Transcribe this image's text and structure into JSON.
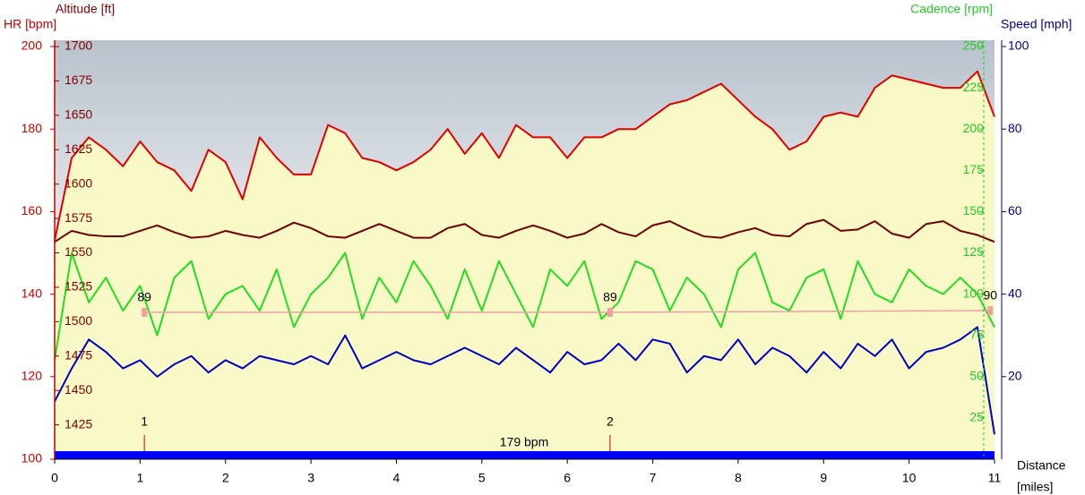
{
  "chart_data": {
    "type": "line",
    "x": [
      0,
      0.2,
      0.4,
      0.6,
      0.8,
      1,
      1.2,
      1.4,
      1.6,
      1.8,
      2,
      2.2,
      2.4,
      2.6,
      2.8,
      3,
      3.2,
      3.4,
      3.6,
      3.8,
      4,
      4.2,
      4.4,
      4.6,
      4.8,
      5,
      5.2,
      5.4,
      5.6,
      5.8,
      6,
      6.2,
      6.4,
      6.6,
      6.8,
      7,
      7.2,
      7.4,
      7.6,
      7.8,
      8,
      8.2,
      8.4,
      8.6,
      8.8,
      9,
      9.2,
      9.4,
      9.6,
      9.8,
      10,
      10.2,
      10.4,
      10.6,
      10.8,
      11
    ],
    "xlim": [
      0,
      11
    ],
    "xticks": [
      0,
      1,
      2,
      3,
      4,
      5,
      6,
      7,
      8,
      9,
      10,
      11
    ],
    "xlabel": [
      "Distance",
      "[miles]"
    ],
    "axes": [
      {
        "title": "HR [bpm]",
        "side": "left-outer",
        "color": "#cc0000",
        "lim": [
          100,
          200
        ],
        "ticks": [
          100,
          120,
          140,
          160,
          180,
          200
        ]
      },
      {
        "title": "Altitude [ft]",
        "side": "left-inner",
        "color": "#800000",
        "lim": [
          1400,
          1700
        ],
        "ticks": [
          1425,
          1450,
          1475,
          1500,
          1525,
          1550,
          1575,
          1600,
          1625,
          1650,
          1675,
          1700
        ]
      },
      {
        "title": "Cadence [rpm]",
        "side": "right-inner",
        "color": "#22cc22",
        "lim": [
          0,
          250
        ],
        "ticks": [
          25,
          50,
          75,
          100,
          125,
          150,
          175,
          200,
          225,
          250
        ]
      },
      {
        "title": "Speed [mph]",
        "side": "right-outer",
        "color": "#000080",
        "lim": [
          0,
          100
        ],
        "ticks": [
          20,
          40,
          60,
          80,
          100
        ]
      }
    ],
    "series": [
      {
        "name": "HR",
        "axis": "left-outer",
        "color": "#e00000",
        "fill": "#f9f9c8",
        "values": [
          153,
          173,
          178,
          175,
          171,
          177,
          172,
          170,
          165,
          175,
          172,
          163,
          178,
          173,
          169,
          169,
          181,
          179,
          173,
          172,
          170,
          172,
          175,
          180,
          174,
          179,
          173,
          181,
          178,
          178,
          173,
          178,
          178,
          180,
          180,
          183,
          186,
          187,
          189,
          191,
          187,
          183,
          180,
          175,
          177,
          183,
          184,
          183,
          190,
          193,
          192,
          191,
          190,
          190,
          194,
          183
        ]
      },
      {
        "name": "Altitude",
        "axis": "left-inner",
        "color": "#700000",
        "values": [
          1558,
          1566,
          1563,
          1562,
          1562,
          1566,
          1570,
          1565,
          1561,
          1562,
          1566,
          1563,
          1561,
          1566,
          1572,
          1568,
          1562,
          1561,
          1566,
          1571,
          1566,
          1561,
          1561,
          1568,
          1571,
          1563,
          1561,
          1566,
          1570,
          1566,
          1561,
          1564,
          1571,
          1565,
          1562,
          1570,
          1573,
          1567,
          1562,
          1561,
          1565,
          1568,
          1563,
          1562,
          1571,
          1574,
          1566,
          1567,
          1573,
          1564,
          1561,
          1571,
          1573,
          1566,
          1563,
          1558
        ]
      },
      {
        "name": "Cadence",
        "axis": "right-inner",
        "color": "#22dd22",
        "values": [
          60,
          125,
          95,
          110,
          90,
          105,
          75,
          110,
          120,
          85,
          100,
          105,
          90,
          115,
          80,
          100,
          110,
          125,
          85,
          110,
          95,
          120,
          105,
          85,
          115,
          90,
          120,
          100,
          80,
          115,
          105,
          120,
          85,
          95,
          120,
          115,
          90,
          110,
          100,
          80,
          115,
          125,
          95,
          90,
          110,
          115,
          85,
          120,
          100,
          95,
          115,
          105,
          100,
          110,
          100,
          80
        ]
      },
      {
        "name": "Speed",
        "axis": "right-outer",
        "color": "#0000c0",
        "values": [
          14,
          22,
          29,
          26,
          22,
          24,
          20,
          23,
          25,
          21,
          24,
          22,
          25,
          24,
          23,
          25,
          23,
          30,
          22,
          24,
          26,
          24,
          23,
          25,
          27,
          25,
          23,
          27,
          24,
          21,
          26,
          23,
          24,
          28,
          24,
          29,
          28,
          21,
          25,
          24,
          29,
          23,
          27,
          25,
          21,
          26,
          22,
          28,
          25,
          29,
          22,
          26,
          27,
          29,
          32,
          6
        ]
      }
    ],
    "lap_cadence": {
      "axis": "right-inner",
      "color": "#f0a0a0",
      "x": [
        1.05,
        6.5,
        10.95
      ],
      "values": [
        89,
        89,
        90
      ]
    },
    "laps": {
      "x": [
        1.05,
        6.5
      ],
      "labels": [
        "1",
        "2"
      ]
    },
    "hr_bar": {
      "label": "179 bpm",
      "color": "#0000ff"
    }
  }
}
